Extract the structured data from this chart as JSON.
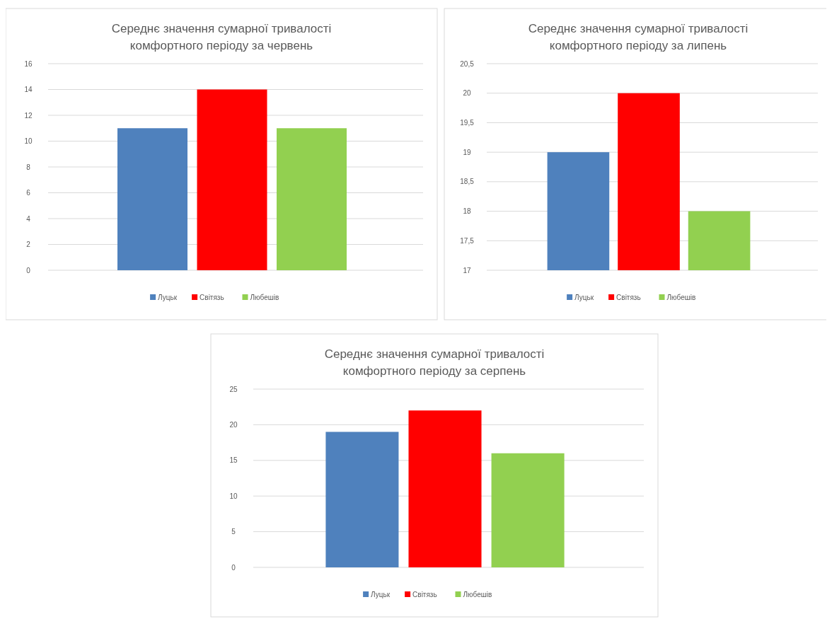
{
  "chart_data": [
    {
      "type": "bar",
      "title": "Середнє значення сумарної тривалості комфортного періоду за червень",
      "categories": [
        null
      ],
      "series": [
        {
          "name": "Луцьк",
          "color": "#4f81bd",
          "values": [
            11
          ]
        },
        {
          "name": "Світязь",
          "color": "#ff0000",
          "values": [
            14
          ]
        },
        {
          "name": "Любешів",
          "color": "#92d050",
          "values": [
            11
          ]
        }
      ],
      "ylim": [
        0,
        16
      ],
      "yticks": [
        0,
        2,
        4,
        6,
        8,
        10,
        12,
        14,
        16
      ],
      "grid": "y",
      "legend": "bottom"
    },
    {
      "type": "bar",
      "title": "Середнє значення сумарної тривалості комфортного періоду за липень",
      "categories": [
        null
      ],
      "series": [
        {
          "name": "Луцьк",
          "color": "#4f81bd",
          "values": [
            19
          ]
        },
        {
          "name": "Світязь",
          "color": "#ff0000",
          "values": [
            20
          ]
        },
        {
          "name": "Любешів",
          "color": "#92d050",
          "values": [
            18
          ]
        }
      ],
      "ylim": [
        17,
        20.5
      ],
      "yticks": [
        17,
        {
          "value": 17.5,
          "label": "17,5"
        },
        18,
        {
          "value": 18.5,
          "label": "18,5"
        },
        19,
        {
          "value": 19.5,
          "label": "19,5"
        },
        20,
        {
          "value": 20.5,
          "label": "20,5"
        }
      ],
      "grid": "y",
      "legend": "bottom"
    },
    {
      "type": "bar",
      "title": "Середнє значення сумарної тривалості комфортного періоду за серпень",
      "categories": [
        null
      ],
      "series": [
        {
          "name": "Луцьк",
          "color": "#4f81bd",
          "values": [
            19
          ]
        },
        {
          "name": "Світязь",
          "color": "#ff0000",
          "values": [
            22
          ]
        },
        {
          "name": "Любешів",
          "color": "#92d050",
          "values": [
            16
          ]
        }
      ],
      "ylim": [
        0,
        25
      ],
      "yticks": [
        0,
        5,
        10,
        15,
        20,
        25
      ],
      "grid": "y",
      "legend": "bottom"
    }
  ]
}
